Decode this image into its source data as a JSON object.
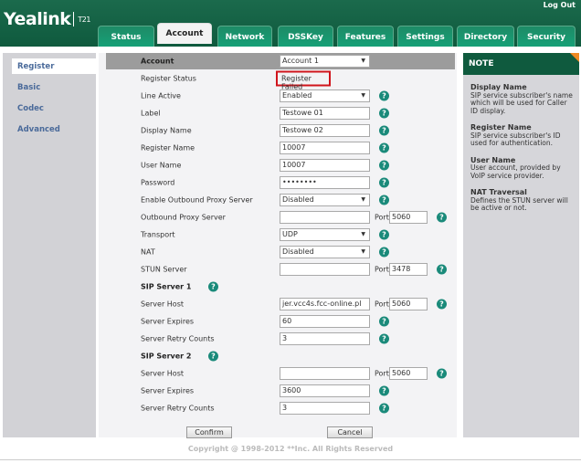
{
  "header": {
    "brand": "Yealink",
    "model": "T21",
    "logout": "Log Out",
    "tabs": [
      "Status",
      "Account",
      "Network",
      "DSSKey",
      "Features",
      "Settings",
      "Directory",
      "Security"
    ],
    "active_tab": "Account"
  },
  "sidebar": {
    "items": [
      "Register",
      "Basic",
      "Codec",
      "Advanced"
    ],
    "active": "Register"
  },
  "form": {
    "account_label": "Account",
    "account_value": "Account 1",
    "rows": [
      {
        "label": "Register Status",
        "type": "status",
        "value": "Register Failed"
      },
      {
        "label": "Line Active",
        "type": "select",
        "value": "Enabled",
        "help": true
      },
      {
        "label": "Label",
        "type": "text",
        "value": "Testowe 01",
        "help": true
      },
      {
        "label": "Display Name",
        "type": "text",
        "value": "Testowe 02",
        "help": true
      },
      {
        "label": "Register Name",
        "type": "text",
        "value": "10007",
        "help": true
      },
      {
        "label": "User Name",
        "type": "text",
        "value": "10007",
        "help": true
      },
      {
        "label": "Password",
        "type": "password",
        "value": "••••••••",
        "help": true
      },
      {
        "label": "Enable Outbound Proxy Server",
        "type": "select",
        "value": "Disabled",
        "help": true
      },
      {
        "label": "Outbound Proxy Server",
        "type": "text",
        "value": "",
        "port": "5060",
        "help": true
      },
      {
        "label": "Transport",
        "type": "select",
        "value": "UDP",
        "help": true
      },
      {
        "label": "NAT",
        "type": "select",
        "value": "Disabled",
        "help": true
      },
      {
        "label": "STUN Server",
        "type": "text",
        "value": "",
        "port": "3478",
        "help": true
      },
      {
        "label": "SIP Server 1",
        "type": "section",
        "help": true
      },
      {
        "label": "Server Host",
        "type": "text",
        "value": "jer.vcc4s.fcc-online.pl",
        "port": "5060",
        "help": true
      },
      {
        "label": "Server Expires",
        "type": "text",
        "value": "60",
        "help": true
      },
      {
        "label": "Server Retry Counts",
        "type": "text",
        "value": "3",
        "help": true
      },
      {
        "label": "SIP Server 2",
        "type": "section",
        "help": true
      },
      {
        "label": "Server Host",
        "type": "text",
        "value": "",
        "port": "5060",
        "help": true
      },
      {
        "label": "Server Expires",
        "type": "text",
        "value": "3600",
        "help": true
      },
      {
        "label": "Server Retry Counts",
        "type": "text",
        "value": "3",
        "help": true
      }
    ],
    "port_label": "Port",
    "help_glyph": "?",
    "confirm": "Confirm",
    "cancel": "Cancel"
  },
  "note": {
    "title": "NOTE",
    "items": [
      {
        "title": "Display Name",
        "text": "SIP service subscriber's name which will be used for Caller ID display."
      },
      {
        "title": "Register Name",
        "text": "SIP service subscriber's ID used for authentication."
      },
      {
        "title": "User Name",
        "text": "User account, provided by VoIP service provider."
      },
      {
        "title": "NAT Traversal",
        "text": "Defines the STUN server will be active or not."
      }
    ]
  },
  "footer": {
    "copyright": "Copyright @ 1998-2012 **Inc. All Rights Reserved"
  },
  "colors": {
    "header": "#0f5a3e",
    "tab": "#16a077",
    "status_border": "#d0141c",
    "help": "#1a8a7a",
    "note_corner": "#f08a24"
  }
}
